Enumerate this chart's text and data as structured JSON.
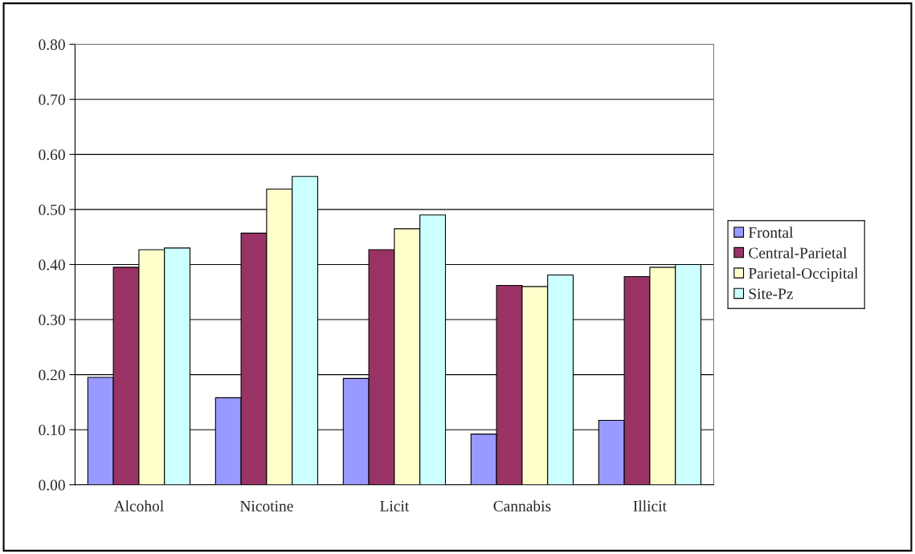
{
  "chart_data": {
    "type": "bar",
    "categories": [
      "Alcohol",
      "Nicotine",
      "Licit",
      "Cannabis",
      "Illicit"
    ],
    "series": [
      {
        "name": "Frontal",
        "color": "#9999ff",
        "values": [
          0.195,
          0.158,
          0.193,
          0.092,
          0.117
        ]
      },
      {
        "name": "Central-Parietal",
        "color": "#993366",
        "values": [
          0.395,
          0.457,
          0.427,
          0.362,
          0.378
        ]
      },
      {
        "name": "Parietal-Occipital",
        "color": "#ffffcc",
        "values": [
          0.427,
          0.537,
          0.465,
          0.36,
          0.395
        ]
      },
      {
        "name": "Site-Pz",
        "color": "#ccffff",
        "values": [
          0.43,
          0.56,
          0.49,
          0.381,
          0.4
        ]
      }
    ],
    "ylim": [
      0,
      0.8
    ],
    "yticks": [
      {
        "value": 0,
        "label": "0.00"
      },
      {
        "value": 0.1,
        "label": "0.10"
      },
      {
        "value": 0.2,
        "label": "0.20"
      },
      {
        "value": 0.3,
        "label": "0.30"
      },
      {
        "value": 0.4,
        "label": "0.40"
      },
      {
        "value": 0.5,
        "label": "0.50"
      },
      {
        "value": 0.6,
        "label": "0.60"
      },
      {
        "value": 0.7,
        "label": "0.70"
      },
      {
        "value": 0.8,
        "label": "0.80"
      }
    ],
    "grid": "y",
    "legend": "right"
  }
}
